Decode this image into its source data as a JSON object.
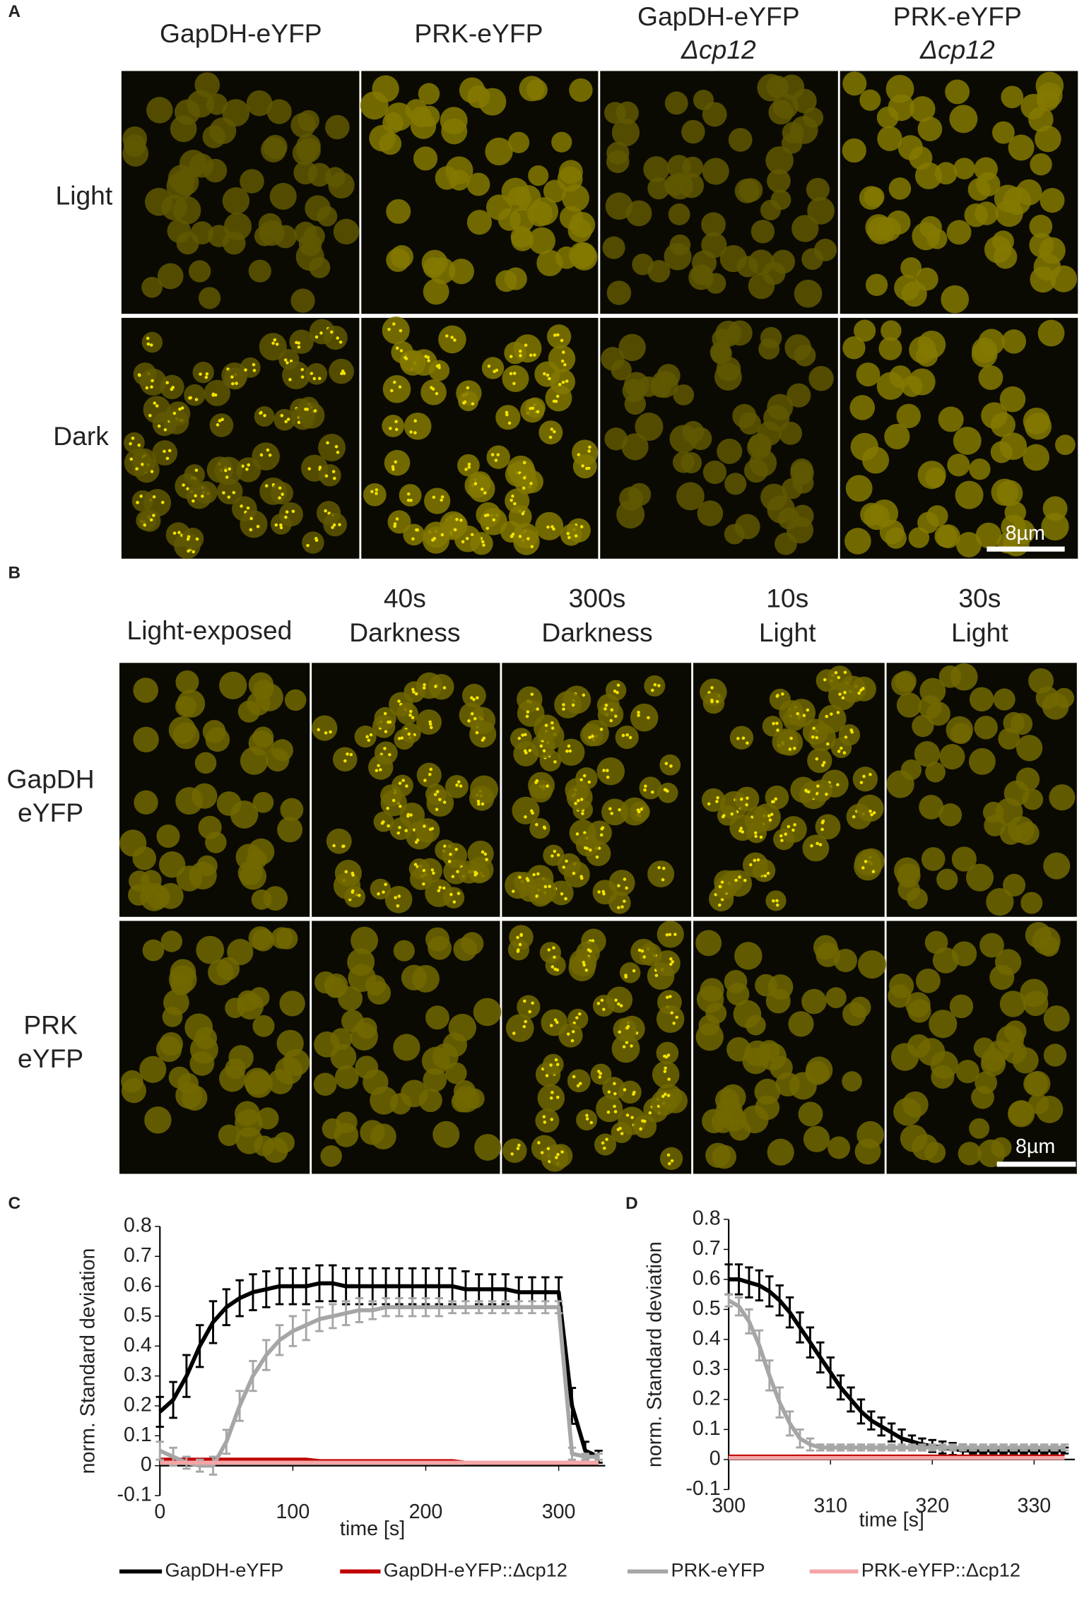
{
  "panels": {
    "a": {
      "label": "A",
      "columns": [
        [
          "GapDH-eYFP"
        ],
        [
          "PRK-eYFP"
        ],
        [
          "GapDH-eYFP",
          "Δcp12"
        ],
        [
          "PRK-eYFP",
          "Δcp12"
        ]
      ],
      "rows": [
        [
          "Light"
        ],
        [
          "Dark"
        ]
      ],
      "scale_bar": "8µm"
    },
    "b": {
      "label": "B",
      "columns": [
        [
          "Light-exposed"
        ],
        [
          "40s",
          "Darkness"
        ],
        [
          "300s",
          "Darkness"
        ],
        [
          "10s",
          "Light"
        ],
        [
          "30s",
          "Light"
        ]
      ],
      "rows": [
        [
          "GapDH",
          "eYFP"
        ],
        [
          "PRK",
          "eYFP"
        ]
      ],
      "scale_bar": "8µm"
    }
  },
  "chart_data": [
    {
      "type": "line",
      "panel_label": "C",
      "xlabel": "time [s]",
      "ylabel": "norm. Standard deviation",
      "x": [
        0,
        10,
        20,
        30,
        40,
        50,
        60,
        70,
        80,
        90,
        100,
        110,
        120,
        130,
        140,
        150,
        160,
        170,
        180,
        190,
        200,
        210,
        220,
        230,
        240,
        250,
        260,
        270,
        280,
        290,
        300,
        310,
        320,
        330
      ],
      "xlim": [
        0,
        335
      ],
      "xticks": [
        0,
        100,
        200,
        300
      ],
      "ylim": [
        -0.1,
        0.8
      ],
      "yticks": [
        -0.1,
        0,
        0.1,
        0.2,
        0.3,
        0.4,
        0.5,
        0.6,
        0.7,
        0.8
      ],
      "series": [
        {
          "name": "GapDH-eYFP",
          "color": "#000000",
          "values": [
            0.18,
            0.22,
            0.3,
            0.4,
            0.48,
            0.53,
            0.56,
            0.58,
            0.59,
            0.6,
            0.6,
            0.6,
            0.61,
            0.61,
            0.6,
            0.6,
            0.6,
            0.6,
            0.6,
            0.6,
            0.6,
            0.6,
            0.6,
            0.59,
            0.59,
            0.59,
            0.59,
            0.58,
            0.58,
            0.58,
            0.58,
            0.2,
            0.05,
            0.03
          ],
          "errors": [
            0.05,
            0.06,
            0.07,
            0.07,
            0.07,
            0.06,
            0.06,
            0.06,
            0.06,
            0.06,
            0.06,
            0.06,
            0.06,
            0.06,
            0.06,
            0.06,
            0.06,
            0.06,
            0.06,
            0.06,
            0.06,
            0.06,
            0.06,
            0.06,
            0.05,
            0.05,
            0.05,
            0.05,
            0.05,
            0.05,
            0.05,
            0.06,
            0.03,
            0.02
          ]
        },
        {
          "name": "GapDH-eYFP::Δcp12",
          "color": "#c00000",
          "values": [
            0.02,
            0.02,
            0.02,
            0.02,
            0.02,
            0.02,
            0.02,
            0.02,
            0.02,
            0.02,
            0.02,
            0.02,
            0.015,
            0.015,
            0.015,
            0.015,
            0.015,
            0.015,
            0.015,
            0.015,
            0.015,
            0.015,
            0.015,
            0.01,
            0.01,
            0.01,
            0.01,
            0.01,
            0.01,
            0.01,
            0.01,
            0.01,
            0.01,
            0.01
          ]
        },
        {
          "name": "PRK-eYFP",
          "color": "#a6a6a6",
          "values": [
            0.05,
            0.03,
            0.01,
            0,
            0,
            0.08,
            0.2,
            0.3,
            0.37,
            0.42,
            0.45,
            0.47,
            0.49,
            0.5,
            0.51,
            0.52,
            0.52,
            0.53,
            0.53,
            0.53,
            0.53,
            0.53,
            0.53,
            0.53,
            0.53,
            0.53,
            0.53,
            0.53,
            0.53,
            0.53,
            0.53,
            0.04,
            0.03,
            0.03
          ],
          "errors": [
            0.03,
            0.03,
            0.02,
            0.02,
            0.03,
            0.04,
            0.05,
            0.05,
            0.05,
            0.05,
            0.05,
            0.05,
            0.04,
            0.04,
            0.04,
            0.04,
            0.03,
            0.03,
            0.03,
            0.03,
            0.03,
            0.03,
            0.02,
            0.02,
            0.02,
            0.02,
            0.02,
            0.02,
            0.02,
            0.02,
            0.02,
            0.02,
            0.01,
            0.01
          ]
        },
        {
          "name": "PRK-eYFP::Δcp12",
          "color": "#f4a6a6",
          "values": [
            0.01,
            0.01,
            0.01,
            0.01,
            0.01,
            0.01,
            0.01,
            0.01,
            0.01,
            0.01,
            0.01,
            0.01,
            0.01,
            0.01,
            0.01,
            0.01,
            0.01,
            0.01,
            0.01,
            0.01,
            0.01,
            0.01,
            0.01,
            0.01,
            0.01,
            0.01,
            0.01,
            0.01,
            0.01,
            0.01,
            0.01,
            0.01,
            0.01,
            0.01
          ]
        }
      ]
    },
    {
      "type": "line",
      "panel_label": "D",
      "xlabel": "time [s]",
      "ylabel": "norm. Standard deviation",
      "x": [
        300,
        301,
        302,
        303,
        304,
        305,
        306,
        307,
        308,
        309,
        310,
        311,
        312,
        313,
        314,
        315,
        316,
        317,
        318,
        319,
        320,
        321,
        322,
        323,
        324,
        325,
        326,
        327,
        328,
        329,
        330,
        331,
        332,
        333
      ],
      "xlim": [
        300,
        334
      ],
      "xticks": [
        300,
        310,
        320,
        330
      ],
      "ylim": [
        -0.1,
        0.8
      ],
      "yticks": [
        -0.1,
        0,
        0.1,
        0.2,
        0.3,
        0.4,
        0.5,
        0.6,
        0.7,
        0.8
      ],
      "series": [
        {
          "name": "GapDH-eYFP",
          "color": "#000000",
          "values": [
            0.6,
            0.6,
            0.59,
            0.58,
            0.56,
            0.53,
            0.49,
            0.44,
            0.39,
            0.34,
            0.29,
            0.24,
            0.2,
            0.16,
            0.13,
            0.11,
            0.09,
            0.07,
            0.06,
            0.05,
            0.045,
            0.04,
            0.035,
            0.03,
            0.03,
            0.03,
            0.03,
            0.03,
            0.03,
            0.03,
            0.03,
            0.03,
            0.03,
            0.03
          ],
          "errors": [
            0.05,
            0.05,
            0.05,
            0.05,
            0.05,
            0.05,
            0.05,
            0.05,
            0.05,
            0.05,
            0.05,
            0.04,
            0.04,
            0.04,
            0.03,
            0.03,
            0.03,
            0.03,
            0.02,
            0.02,
            0.02,
            0.02,
            0.02,
            0.02,
            0.01,
            0.01,
            0.01,
            0.01,
            0.01,
            0.01,
            0.01,
            0.01,
            0.01,
            0.01
          ]
        },
        {
          "name": "GapDH-eYFP::Δcp12",
          "color": "#c00000",
          "values": [
            0.01,
            0.01,
            0.01,
            0.01,
            0.01,
            0.01,
            0.01,
            0.01,
            0.01,
            0.01,
            0.01,
            0.01,
            0.01,
            0.01,
            0.01,
            0.01,
            0.01,
            0.01,
            0.01,
            0.01,
            0.01,
            0.01,
            0.01,
            0.01,
            0.01,
            0.01,
            0.01,
            0.01,
            0.01,
            0.01,
            0.01,
            0.01,
            0.01,
            0.01
          ]
        },
        {
          "name": "PRK-eYFP",
          "color": "#a6a6a6",
          "values": [
            0.53,
            0.51,
            0.46,
            0.38,
            0.28,
            0.19,
            0.12,
            0.07,
            0.05,
            0.04,
            0.04,
            0.04,
            0.04,
            0.04,
            0.04,
            0.04,
            0.04,
            0.04,
            0.04,
            0.04,
            0.04,
            0.04,
            0.04,
            0.04,
            0.04,
            0.04,
            0.04,
            0.04,
            0.04,
            0.04,
            0.04,
            0.04,
            0.04,
            0.04
          ],
          "errors": [
            0.02,
            0.03,
            0.04,
            0.05,
            0.05,
            0.05,
            0.04,
            0.03,
            0.02,
            0.01,
            0.01,
            0.01,
            0.01,
            0.01,
            0.01,
            0.01,
            0.01,
            0.01,
            0.01,
            0.01,
            0.01,
            0.01,
            0.01,
            0.01,
            0.01,
            0.01,
            0.01,
            0.01,
            0.01,
            0.01,
            0.01,
            0.01,
            0.01,
            0.01
          ]
        },
        {
          "name": "PRK-eYFP::Δcp12",
          "color": "#f4a6a6",
          "values": [
            0.005,
            0.005,
            0.005,
            0.005,
            0.005,
            0.005,
            0.005,
            0.005,
            0.005,
            0.005,
            0.005,
            0.005,
            0.005,
            0.005,
            0.005,
            0.005,
            0.005,
            0.005,
            0.005,
            0.005,
            0.005,
            0.005,
            0.005,
            0.005,
            0.005,
            0.005,
            0.005,
            0.005,
            0.005,
            0.005,
            0.005,
            0.005,
            0.005,
            0.005
          ]
        }
      ]
    }
  ]
}
